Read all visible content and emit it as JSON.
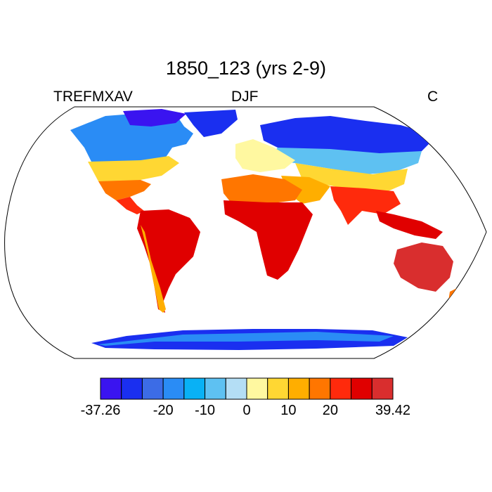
{
  "title": "1850_123 (yrs 2-9)",
  "subtitle_left": "TREFMXAV",
  "subtitle_center": "DJF",
  "subtitle_right": "C",
  "colorbar": {
    "colors": [
      "#3a14f0",
      "#1a2ff0",
      "#3c6ce6",
      "#2a8cf5",
      "#09b1f5",
      "#5ec1f2",
      "#b4def5",
      "#fff8a0",
      "#ffd733",
      "#ffae00",
      "#ff7600",
      "#ff2a0c",
      "#e00000",
      "#d92e2e"
    ],
    "tick_labels": [
      {
        "label": "-37.26",
        "boundary": 0
      },
      {
        "label": "-20",
        "boundary": 3
      },
      {
        "label": "-10",
        "boundary": 5
      },
      {
        "label": "0",
        "boundary": 7
      },
      {
        "label": "10",
        "boundary": 9
      },
      {
        "label": "20",
        "boundary": 11
      },
      {
        "label": "39.42",
        "boundary": 14
      }
    ]
  },
  "legend_placement": "bottom-center",
  "projection": "Robinson"
}
